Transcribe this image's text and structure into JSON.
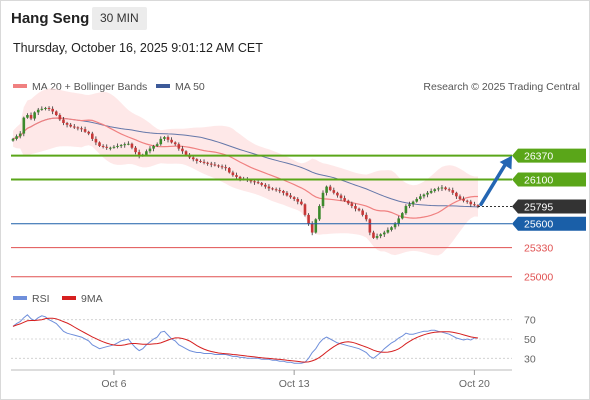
{
  "header": {
    "instrument": "Hang Seng",
    "timeframe": "30 MIN",
    "datetime": "Thursday, October 16, 2025 9:01:12 AM CET"
  },
  "legend": {
    "ma20": "MA 20 + Bollinger Bands",
    "ma50": "MA 50",
    "credit": "Research © 2025 Trading Central",
    "rsi": "RSI",
    "rsi_ma": "9MA"
  },
  "colors": {
    "ma20": "#f08080",
    "bands_fill": "#fde0e0",
    "ma50": "#3d5a99",
    "resistance": "#5aa619",
    "current": "#333333",
    "pivot": "#1a5fa8",
    "support": "#e05050",
    "rsi": "#6f8fdb",
    "rsi_ma": "#d62020",
    "arrow": "#2466b3",
    "candle_up": "#3c8a2c",
    "candle_down": "#c63737"
  },
  "chart_data": [
    {
      "type": "candlestick",
      "ylim": [
        24850,
        27000
      ],
      "x_ticks": [
        {
          "label": "Oct 6",
          "bar": 28
        },
        {
          "label": "Oct 13",
          "bar": 78
        },
        {
          "label": "Oct 20",
          "bar": 128
        }
      ],
      "current_price": 25795,
      "levels": [
        {
          "value": 26370,
          "label": "26370",
          "kind": "resistance"
        },
        {
          "value": 26100,
          "label": "26100",
          "kind": "resistance"
        },
        {
          "value": 25795,
          "label": "25795",
          "kind": "current"
        },
        {
          "value": 25600,
          "label": "25600",
          "kind": "pivot"
        },
        {
          "value": 25330,
          "label": "25330",
          "kind": "support"
        },
        {
          "value": 25000,
          "label": "25000",
          "kind": "support"
        }
      ],
      "forecast_arrow": {
        "from": 25820,
        "to": 26370
      },
      "closes": [
        26560,
        26590,
        26620,
        26800,
        26830,
        26790,
        26860,
        26890,
        26900,
        26910,
        26900,
        26870,
        26830,
        26780,
        26740,
        26720,
        26700,
        26690,
        26680,
        26670,
        26640,
        26620,
        26560,
        26520,
        26480,
        26470,
        26460,
        26460,
        26470,
        26480,
        26490,
        26500,
        26505,
        26460,
        26410,
        26370,
        26380,
        26420,
        26450,
        26480,
        26500,
        26560,
        26580,
        26550,
        26520,
        26500,
        26450,
        26420,
        26380,
        26350,
        26330,
        26310,
        26300,
        26290,
        26280,
        26270,
        26260,
        26250,
        26240,
        26230,
        26180,
        26150,
        26130,
        26110,
        26100,
        26090,
        26080,
        26070,
        26060,
        26040,
        26020,
        26000,
        25990,
        25980,
        25970,
        25950,
        25920,
        25900,
        25880,
        25850,
        25820,
        25700,
        25600,
        25500,
        25650,
        25800,
        25950,
        26020,
        25980,
        25950,
        25920,
        25890,
        25860,
        25830,
        25800,
        25770,
        25750,
        25700,
        25650,
        25500,
        25440,
        25460,
        25480,
        25500,
        25530,
        25560,
        25600,
        25660,
        25720,
        25800,
        25820,
        25850,
        25880,
        25910,
        25930,
        25950,
        25970,
        25990,
        26000,
        26010,
        25990,
        25980,
        25950,
        25910,
        25880,
        25860,
        25850,
        25820,
        25810,
        25795
      ]
    },
    {
      "type": "line",
      "name": "RSI",
      "ylim": [
        20,
        80
      ],
      "y_ticks": [
        70,
        50,
        30
      ],
      "rsi": [
        63,
        66,
        68,
        72,
        75,
        71,
        69,
        72,
        74,
        73,
        70,
        68,
        66,
        62,
        58,
        56,
        55,
        54,
        53,
        52,
        50,
        48,
        44,
        42,
        40,
        41,
        42,
        43,
        44,
        46,
        48,
        49,
        50,
        45,
        41,
        38,
        40,
        44,
        47,
        50,
        52,
        57,
        58,
        54,
        50,
        48,
        44,
        42,
        40,
        38,
        37,
        36,
        36,
        35,
        35,
        35,
        34,
        34,
        34,
        34,
        33,
        32,
        32,
        31,
        31,
        30,
        30,
        30,
        30,
        29,
        29,
        29,
        28,
        28,
        27,
        27,
        26,
        26,
        25,
        25,
        25,
        26,
        30,
        36,
        40,
        46,
        50,
        52,
        50,
        48,
        46,
        45,
        44,
        43,
        42,
        41,
        40,
        38,
        36,
        32,
        30,
        33,
        36,
        40,
        43,
        46,
        48,
        51,
        53,
        56,
        55,
        55,
        56,
        57,
        58,
        58,
        59,
        59,
        58,
        57,
        56,
        55,
        53,
        51,
        50,
        49,
        50,
        49,
        51,
        51
      ]
    }
  ]
}
